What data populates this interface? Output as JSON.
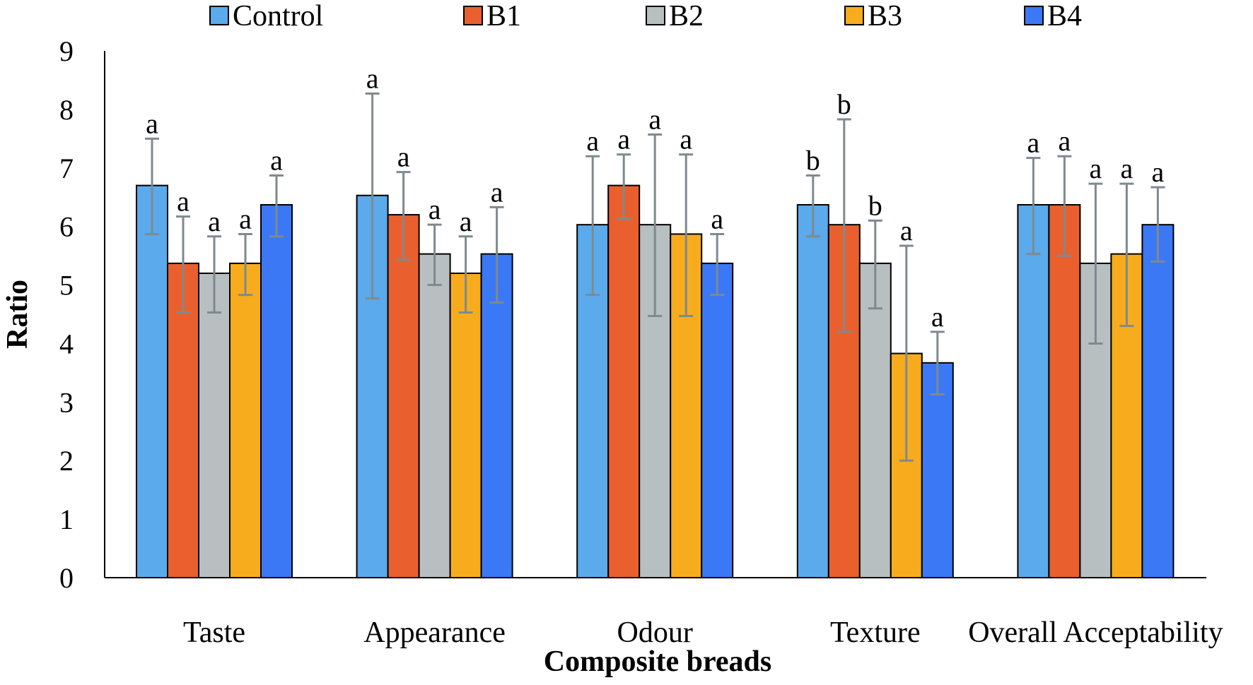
{
  "chart_data": {
    "type": "bar",
    "xlabel": "Composite breads",
    "ylabel": "Ratio",
    "ylim": [
      0,
      9
    ],
    "yticks": [
      0,
      1,
      2,
      3,
      4,
      5,
      6,
      7,
      8,
      9
    ],
    "grid": false,
    "legend_position": "top",
    "categories": [
      "Taste",
      "Appearance",
      "Odour",
      "Texture",
      "Overall Acceptability"
    ],
    "series": [
      {
        "name": "Control",
        "color": "#5baaeb",
        "values": [
          6.7,
          6.53,
          6.03,
          6.37,
          6.37
        ],
        "err_low": [
          5.87,
          4.77,
          4.83,
          5.83,
          5.53
        ],
        "err_high": [
          7.5,
          8.27,
          7.2,
          6.87,
          7.17
        ],
        "labels": [
          "a",
          "a",
          "a",
          "b",
          "a"
        ]
      },
      {
        "name": "B1",
        "color": "#e9602e",
        "values": [
          5.37,
          6.2,
          6.7,
          6.03,
          6.37
        ],
        "err_low": [
          4.53,
          5.43,
          6.13,
          4.2,
          5.5
        ],
        "err_high": [
          6.17,
          6.93,
          7.23,
          7.83,
          7.2
        ],
        "labels": [
          "a",
          "a",
          "a",
          "b",
          "a"
        ]
      },
      {
        "name": "B2",
        "color": "#b7bfc0",
        "values": [
          5.2,
          5.53,
          6.03,
          5.37,
          5.37
        ],
        "err_low": [
          4.53,
          5.0,
          4.47,
          4.6,
          4.0
        ],
        "err_high": [
          5.83,
          6.03,
          7.57,
          6.1,
          6.73
        ],
        "labels": [
          "a",
          "a",
          "a",
          "b",
          "a"
        ]
      },
      {
        "name": "B3",
        "color": "#f7ac1d",
        "values": [
          5.37,
          5.2,
          5.87,
          3.83,
          5.53
        ],
        "err_low": [
          4.83,
          4.53,
          4.47,
          2.0,
          4.3
        ],
        "err_high": [
          5.87,
          5.83,
          7.23,
          5.67,
          6.73
        ],
        "labels": [
          "a",
          "a",
          "a",
          "a",
          "a"
        ]
      },
      {
        "name": "B4",
        "color": "#3b78f6",
        "values": [
          6.37,
          5.53,
          5.37,
          3.67,
          6.03
        ],
        "err_low": [
          5.83,
          4.7,
          4.83,
          3.13,
          5.4
        ],
        "err_high": [
          6.87,
          6.33,
          5.87,
          4.2,
          6.67
        ],
        "labels": [
          "a",
          "a",
          "a",
          "a",
          "a"
        ]
      }
    ],
    "error_bar_color": "#7f8a8e"
  }
}
